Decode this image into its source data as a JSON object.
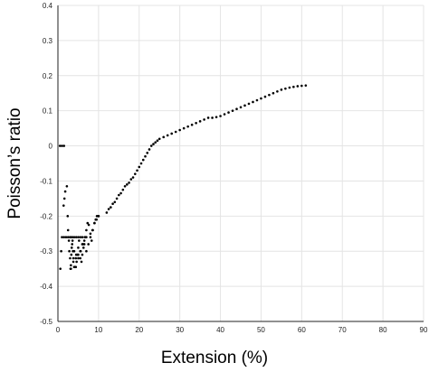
{
  "chart_data": {
    "type": "scatter",
    "title": "",
    "xlabel": "Extension (%)",
    "ylabel": "Poisson’s ratio",
    "xlim": [
      0,
      90
    ],
    "ylim": [
      -0.5,
      0.4
    ],
    "grid": true,
    "x_ticks": [
      0,
      10,
      20,
      30,
      40,
      50,
      60,
      70,
      80,
      90
    ],
    "y_ticks": [
      -0.5,
      -0.4,
      -0.3,
      -0.2,
      -0.1,
      0,
      0.1,
      0.2,
      0.3,
      0.4
    ],
    "x_tick_labels": [
      "0",
      "10",
      "20",
      "30",
      "40",
      "50",
      "60",
      "70",
      "80",
      "90"
    ],
    "y_tick_labels": [
      "-0.5",
      "-0.4",
      "-0.3",
      "-0.2",
      "-0.1",
      "0",
      "0.1",
      "0.2",
      "0.3",
      "0.4"
    ],
    "marker_color": "#000000",
    "grid_color": "#e4e4e4",
    "series": [
      {
        "x": [
          0.5,
          1.0,
          1.5,
          0.6,
          0.8,
          1.0,
          1.4,
          1.6,
          1.8,
          2.2,
          2.4,
          2.5,
          2.7,
          2.8,
          3.0,
          3.1,
          3.2,
          3.3,
          3.4,
          3.5,
          3.6,
          3.7,
          3.8,
          4.0,
          4.2,
          4.4,
          4.6,
          4.8,
          5.0,
          5.2,
          5.5,
          5.8,
          6.0,
          6.3,
          6.6,
          7.0,
          7.3,
          7.6,
          8.0,
          8.3,
          8.6,
          9.0,
          9.3,
          9.6,
          10.0,
          3.0,
          3.5,
          4.0,
          4.5,
          5.0,
          5.5,
          6.0,
          6.5,
          7.0,
          3.2,
          3.8,
          4.4,
          5.0,
          5.6,
          6.2,
          6.8,
          12.0,
          12.5,
          13.0,
          13.5,
          14.0,
          14.5,
          15.0,
          15.5,
          16.0,
          16.5,
          17.0,
          17.5,
          18.0,
          18.5,
          19.0,
          19.5,
          20.0,
          20.5,
          21.0,
          21.5,
          22.0,
          22.5,
          23.0,
          23.5,
          24.0,
          24.5,
          25.0,
          26.0,
          27.0,
          28.0,
          29.0,
          30.0,
          31.0,
          32.0,
          33.0,
          34.0,
          35.0,
          36.0,
          37.0,
          38.0,
          39.0,
          40.0,
          41.0,
          42.0,
          43.0,
          44.0,
          45.0,
          46.0,
          47.0,
          48.0,
          49.0,
          50.0,
          51.0,
          52.0,
          53.0,
          54.0,
          55.0,
          56.0,
          57.0,
          58.0,
          59.0,
          60.0,
          61.0,
          1.5,
          2.0,
          2.5,
          3.0,
          3.5,
          4.0,
          4.5,
          5.0,
          5.5,
          6.0,
          6.5,
          7.0,
          7.5,
          8.0,
          8.5,
          9.0,
          9.5,
          10.0
        ],
        "y": [
          0.0,
          0.0,
          0.0,
          -0.35,
          -0.3,
          -0.26,
          -0.17,
          -0.15,
          -0.13,
          -0.115,
          -0.2,
          -0.24,
          -0.27,
          -0.3,
          -0.32,
          -0.35,
          -0.34,
          -0.31,
          -0.29,
          -0.26,
          -0.27,
          -0.3,
          -0.32,
          -0.345,
          -0.345,
          -0.345,
          -0.33,
          -0.31,
          -0.29,
          -0.27,
          -0.32,
          -0.33,
          -0.31,
          -0.29,
          -0.26,
          -0.24,
          -0.22,
          -0.225,
          -0.25,
          -0.27,
          -0.24,
          -0.22,
          -0.21,
          -0.2,
          -0.2,
          -0.26,
          -0.28,
          -0.3,
          -0.31,
          -0.32,
          -0.3,
          -0.28,
          -0.27,
          -0.26,
          -0.35,
          -0.33,
          -0.32,
          -0.31,
          -0.3,
          -0.28,
          -0.26,
          -0.19,
          -0.18,
          -0.175,
          -0.165,
          -0.16,
          -0.15,
          -0.14,
          -0.135,
          -0.125,
          -0.115,
          -0.11,
          -0.105,
          -0.095,
          -0.09,
          -0.08,
          -0.07,
          -0.06,
          -0.05,
          -0.04,
          -0.03,
          -0.02,
          -0.01,
          0.0,
          0.005,
          0.01,
          0.015,
          0.02,
          0.025,
          0.03,
          0.035,
          0.04,
          0.045,
          0.05,
          0.055,
          0.06,
          0.065,
          0.07,
          0.075,
          0.08,
          0.08,
          0.082,
          0.085,
          0.09,
          0.095,
          0.1,
          0.105,
          0.11,
          0.115,
          0.12,
          0.125,
          0.13,
          0.135,
          0.14,
          0.145,
          0.15,
          0.155,
          0.16,
          0.163,
          0.166,
          0.168,
          0.17,
          0.171,
          0.172,
          -0.26,
          -0.26,
          -0.26,
          -0.26,
          -0.26,
          -0.26,
          -0.26,
          -0.26,
          -0.26,
          -0.26,
          -0.28,
          -0.3,
          -0.28,
          -0.26,
          -0.24,
          -0.22,
          -0.21,
          -0.2
        ]
      }
    ]
  }
}
